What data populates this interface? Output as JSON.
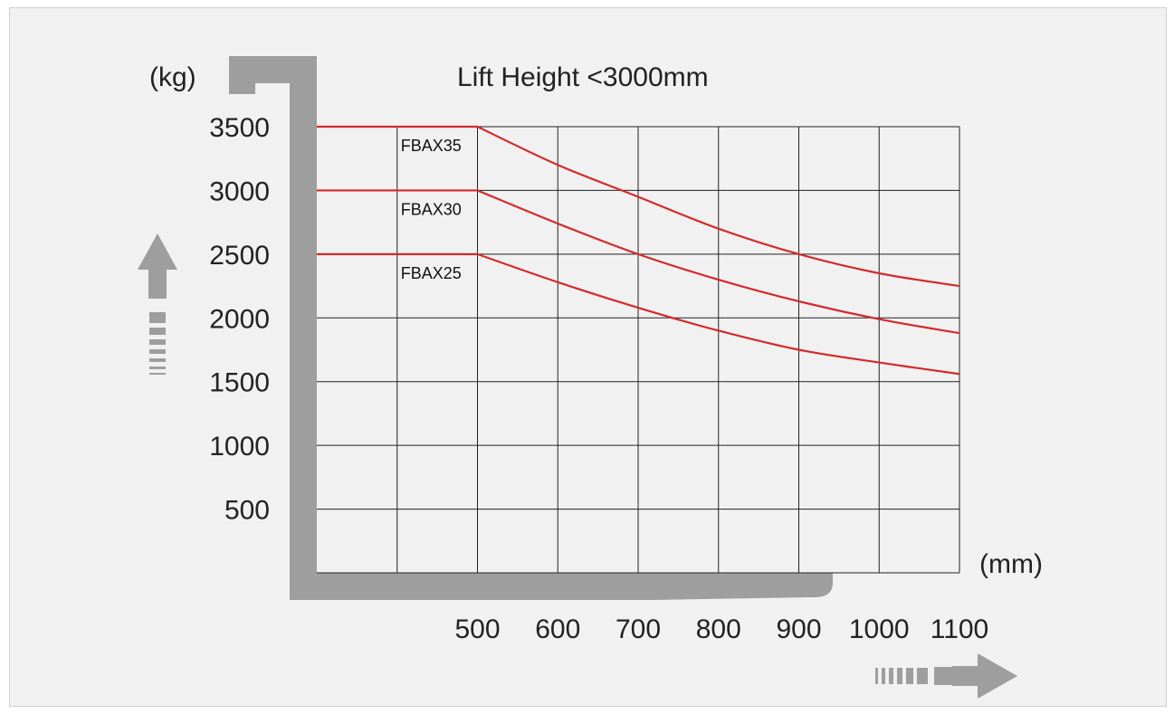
{
  "chart_data": {
    "type": "line",
    "title": "Lift Height <3000mm",
    "ylabel": "(kg)",
    "xlabel": "(mm)",
    "xlim": [
      300,
      1100
    ],
    "ylim": [
      0,
      3500
    ],
    "x_ticks": [
      "500",
      "600",
      "700",
      "800",
      "900",
      "1000",
      "1100"
    ],
    "y_ticks": [
      "3500",
      "3000",
      "2500",
      "2000",
      "1500",
      "1000",
      "500"
    ],
    "grid": true,
    "line_color": "#d42a2a",
    "series": [
      {
        "name": "FBAX35",
        "x": [
          300,
          500,
          600,
          700,
          800,
          900,
          1000,
          1100
        ],
        "values": [
          3500,
          3500,
          3200,
          2950,
          2700,
          2500,
          2350,
          2250
        ]
      },
      {
        "name": "FBAX30",
        "x": [
          300,
          500,
          600,
          700,
          800,
          900,
          1000,
          1100
        ],
        "values": [
          3000,
          3000,
          2740,
          2500,
          2300,
          2130,
          1990,
          1880
        ]
      },
      {
        "name": "FBAX25",
        "x": [
          300,
          500,
          600,
          700,
          800,
          900,
          1000,
          1100
        ],
        "values": [
          2500,
          2500,
          2280,
          2080,
          1900,
          1750,
          1650,
          1560
        ]
      }
    ]
  },
  "colors": {
    "background": "#f1f1f1",
    "fork": "#9e9e9e",
    "grid": "#222222",
    "arrow": "#999999"
  },
  "icons": {
    "up": "arrow-up-icon",
    "right": "arrow-right-icon"
  }
}
